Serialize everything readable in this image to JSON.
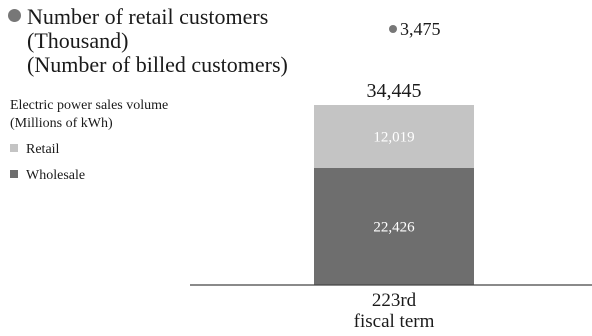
{
  "chart_data": {
    "type": "bar",
    "stacked": true,
    "categories": [
      "223rd\nfiscal term"
    ],
    "series": [
      {
        "name": "Wholesale",
        "values": [
          22426
        ],
        "color": "#6e6e6e"
      },
      {
        "name": "Retail",
        "values": [
          12019
        ],
        "color": "#c4c4c4"
      }
    ],
    "totals": [
      34445
    ],
    "overlay_points": {
      "name_lines": [
        "Number of retail customers",
        "(Thousand)",
        "(Number of billed customers)"
      ],
      "values": [
        3475
      ],
      "color": "#777777"
    },
    "value_labels": {
      "total": "34,445",
      "wholesale": "22,426",
      "retail": "12,019",
      "customers": "3,475"
    },
    "legend": {
      "sales_title_lines": [
        "Electric power sales volume",
        "(Millions of kWh)"
      ],
      "items": [
        {
          "label": "Retail",
          "color": "#c4c4c4"
        },
        {
          "label": "Wholesale",
          "color": "#6e6e6e"
        }
      ]
    },
    "x_tick_lines": [
      "223rd",
      "fiscal term"
    ],
    "ylim": [
      0,
      34445
    ]
  }
}
